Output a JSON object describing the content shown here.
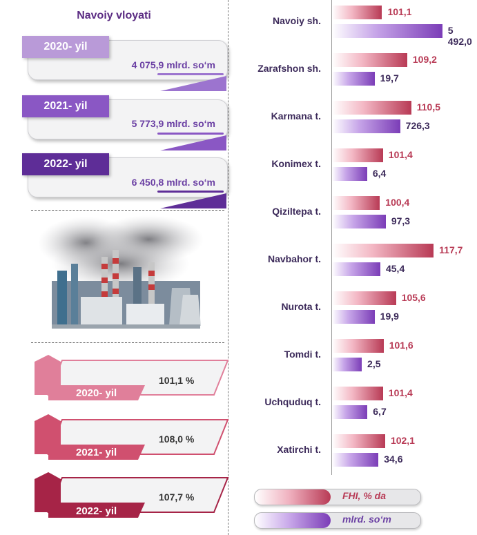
{
  "left": {
    "title": "Navoiy vloyati",
    "volumes": [
      {
        "year": "2020- yil",
        "amount": "4 075,9 mlrd. so‘m"
      },
      {
        "year": "2021- yil",
        "amount": "5 773,9 mlrd. so‘m"
      },
      {
        "year": "2022- yil",
        "amount": "6 450,8 mlrd. so‘m"
      }
    ],
    "indices": [
      {
        "year": "2020- yil",
        "pct": "101,1 %"
      },
      {
        "year": "2021- yil",
        "pct": "108,0 %"
      },
      {
        "year": "2022- yil",
        "pct": "107,7 %"
      }
    ]
  },
  "legend": {
    "fhi": "FHI, % da",
    "mlrd": "mlrd. so‘m"
  },
  "colors": {
    "red": "#b83a55",
    "purple": "#7b3db7",
    "tab1": "#b99ad8",
    "tab2": "#8a57c4",
    "tab3": "#5e2d97",
    "pink1": "#e07f9a",
    "pink2": "#d0506f",
    "pink3": "#a62447"
  },
  "chart_data": {
    "type": "bar",
    "categories": [
      "Navoiy sh.",
      "Zarafshon sh.",
      "Karmana t.",
      "Konimex t.",
      "Qiziltepa t.",
      "Navbahor t.",
      "Nurota t.",
      "Tomdi t.",
      "Uchquduq t.",
      "Xatirchi t."
    ],
    "series": [
      {
        "name": "FHI, % da",
        "values": [
          101.1,
          109.2,
          110.5,
          101.4,
          100.4,
          117.7,
          105.6,
          101.6,
          101.4,
          102.1
        ],
        "labels": [
          "101,1",
          "109,2",
          "110,5",
          "101,4",
          "100,4",
          "117,7",
          "105,6",
          "101,6",
          "101,4",
          "102,1"
        ]
      },
      {
        "name": "mlrd. so‘m",
        "values": [
          5492.0,
          19.7,
          726.3,
          6.4,
          97.3,
          45.4,
          19.9,
          2.5,
          6.7,
          34.6
        ],
        "labels": [
          "5 492,0",
          "19,7",
          "726,3",
          "6,4",
          "97,3",
          "45,4",
          "19,9",
          "2,5",
          "6,7",
          "34,6"
        ]
      }
    ]
  }
}
